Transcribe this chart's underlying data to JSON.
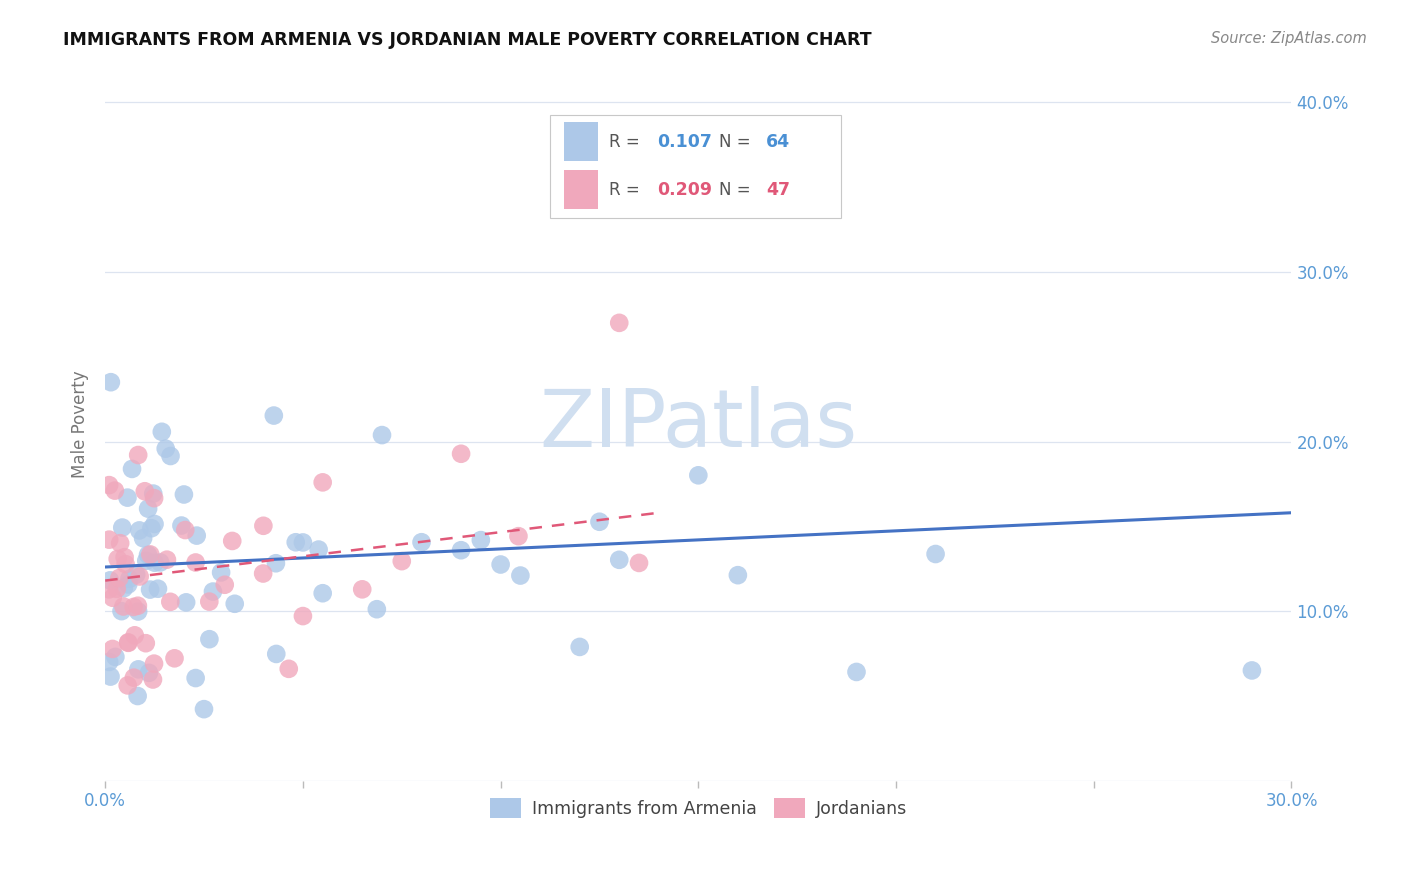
{
  "title": "IMMIGRANTS FROM ARMENIA VS JORDANIAN MALE POVERTY CORRELATION CHART",
  "source": "Source: ZipAtlas.com",
  "ylabel": "Male Poverty",
  "x_min": 0.0,
  "x_max": 0.3,
  "y_min": 0.0,
  "y_max": 0.42,
  "series1_label": "Immigrants from Armenia",
  "series1_color": "#adc8e8",
  "series1_R": "0.107",
  "series1_N": "64",
  "series2_label": "Jordanians",
  "series2_color": "#f0a8bc",
  "series2_R": "0.209",
  "series2_N": "47",
  "legend_R1_color": "#4a90d4",
  "legend_R2_color": "#e05878",
  "watermark": "ZIPatlas",
  "watermark_color": "#d0dff0",
  "trendline1_color": "#4472c4",
  "trendline2_color": "#e05878",
  "grid_color": "#dde4f0",
  "tick_color": "#5b9bd5",
  "ylabel_color": "#777777",
  "title_color": "#111111",
  "source_color": "#888888"
}
